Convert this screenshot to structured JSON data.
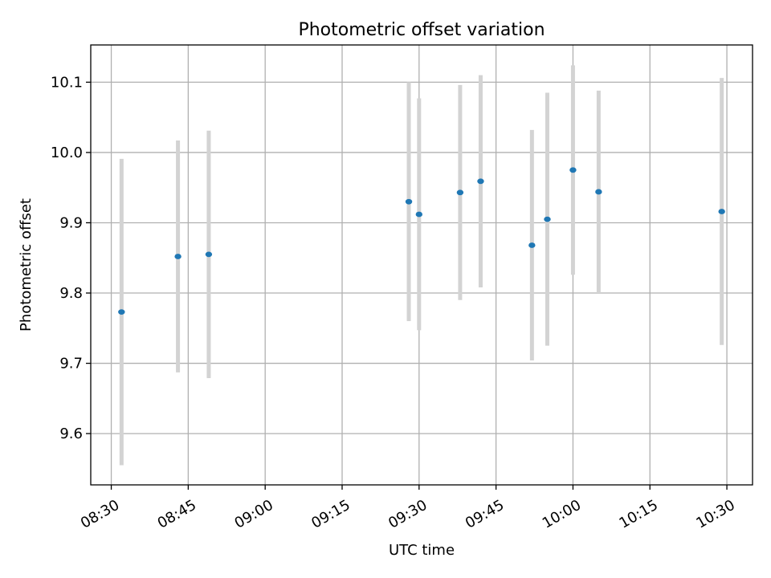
{
  "chart_data": {
    "type": "scatter",
    "title": "Photometric offset variation",
    "xlabel": "UTC time",
    "ylabel": "Photometric offset",
    "x_tick_labels": [
      "08:30",
      "08:45",
      "09:00",
      "09:15",
      "09:30",
      "09:45",
      "10:00",
      "10:15",
      "10:30"
    ],
    "x_tick_minutes": [
      510,
      525,
      540,
      555,
      570,
      585,
      600,
      615,
      630
    ],
    "xlim_minutes": [
      506,
      635
    ],
    "y_ticks": [
      9.6,
      9.7,
      9.8,
      9.9,
      10.0,
      10.1
    ],
    "y_tick_labels": [
      "9.6",
      "9.7",
      "9.8",
      "9.9",
      "10.0",
      "10.1"
    ],
    "ylim": [
      9.527,
      10.153
    ],
    "grid": true,
    "point_color": "#1f77b4",
    "errorbar_color": "#d3d3d3",
    "points": [
      {
        "time": "08:32",
        "y": 9.773,
        "yerr": 0.218
      },
      {
        "time": "08:43",
        "y": 9.852,
        "yerr": 0.165
      },
      {
        "time": "08:49",
        "y": 9.855,
        "yerr": 0.176
      },
      {
        "time": "09:28",
        "y": 9.93,
        "yerr": 0.17
      },
      {
        "time": "09:30",
        "y": 9.912,
        "yerr": 0.165
      },
      {
        "time": "09:38",
        "y": 9.943,
        "yerr": 0.153
      },
      {
        "time": "09:42",
        "y": 9.959,
        "yerr": 0.151
      },
      {
        "time": "09:52",
        "y": 9.868,
        "yerr": 0.164
      },
      {
        "time": "09:55",
        "y": 9.905,
        "yerr": 0.18
      },
      {
        "time": "10:00",
        "y": 9.975,
        "yerr": 0.149
      },
      {
        "time": "10:05",
        "y": 9.944,
        "yerr": 0.144
      },
      {
        "time": "10:29",
        "y": 9.916,
        "yerr": 0.19
      }
    ]
  }
}
